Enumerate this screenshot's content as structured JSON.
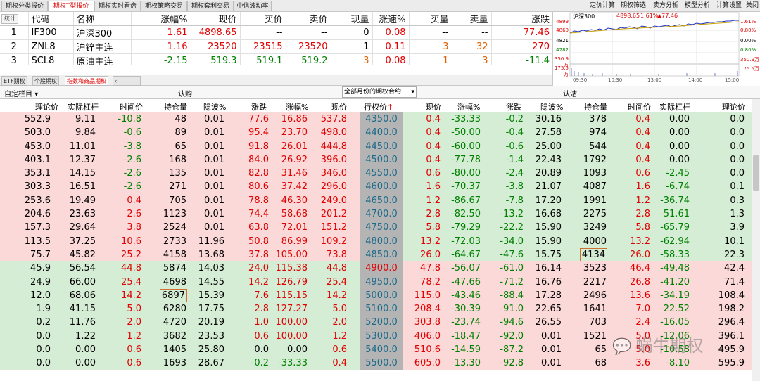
{
  "top_tabs": [
    "期权分类报价",
    "期权T型报价",
    "期权实时看盘",
    "期权策略交易",
    "期权套利交易",
    "中信波动率"
  ],
  "top_links": [
    "定价计算",
    "期权筛选",
    "卖方分析",
    "模型分析",
    "计算设置",
    "关闭"
  ],
  "quote": {
    "headers": [
      "",
      "代码",
      "名称",
      "涨幅%",
      "现价",
      "买价",
      "卖价",
      "现量",
      "涨速%",
      "买量",
      "卖量",
      "涨跌"
    ],
    "rows": [
      [
        "1",
        "IF300",
        "沪深300",
        "1.61",
        "4898.65",
        "--",
        "--",
        "0",
        "0.08",
        "--",
        "--",
        "77.46"
      ],
      [
        "2",
        "ZNL8",
        "沪锌主连",
        "1.16",
        "23520",
        "23515",
        "23520",
        "1",
        "0.11",
        "3",
        "32",
        "270"
      ],
      [
        "3",
        "SCL8",
        "原油主连",
        "-2.15",
        "519.3",
        "519.1",
        "519.2",
        "3",
        "0.08",
        "1",
        "3",
        "-11.4"
      ]
    ]
  },
  "mini": {
    "title": "沪深300",
    "price": "4898.65",
    "pct": "1.61%",
    "chg": "▲77.46",
    "left_labels": [
      "4899",
      "4860",
      "4821",
      "4782",
      "350.9万",
      "175.5万"
    ],
    "right_labels": [
      "1.61%",
      "0.80%",
      "0.00%",
      "0.80%",
      "350.9万",
      "175.5万"
    ],
    "times": [
      "09:30",
      "10:30",
      "13:00",
      "14:00",
      "15:00"
    ],
    "icon": "统计"
  },
  "tabs2": [
    "ETF期权",
    "个股期权",
    "指数和商品期权"
  ],
  "ctrl": {
    "custom": "自定栏目",
    "call": "认购",
    "select": "全部月份的期权合约",
    "put": "认沽"
  },
  "headers": [
    "理论价",
    "实际杠杆",
    "时间价",
    "持仓量",
    "隐波%",
    "涨跌",
    "涨幅%",
    "现价",
    "行权价",
    "现价",
    "涨幅%",
    "涨跌",
    "隐波%",
    "持仓量",
    "时间价",
    "实际杠杆",
    "理论价"
  ],
  "rows": [
    [
      "552.9",
      "9.11",
      "-10.8",
      "48",
      "0.01",
      "77.6",
      "16.86",
      "537.8",
      "4350.0",
      "0.4",
      "-33.33",
      "-0.2",
      "30.16",
      "378",
      "0.4",
      "0.00",
      "0.0"
    ],
    [
      "503.0",
      "9.84",
      "-0.6",
      "89",
      "0.01",
      "95.4",
      "23.70",
      "498.0",
      "4400.0",
      "0.4",
      "-50.00",
      "-0.4",
      "27.58",
      "974",
      "0.4",
      "0.00",
      "0.0"
    ],
    [
      "453.0",
      "11.01",
      "-3.8",
      "65",
      "0.01",
      "91.8",
      "26.01",
      "444.8",
      "4450.0",
      "0.4",
      "-60.00",
      "-0.6",
      "25.00",
      "544",
      "0.4",
      "0.00",
      "0.0"
    ],
    [
      "403.1",
      "12.37",
      "-2.6",
      "168",
      "0.01",
      "84.0",
      "26.92",
      "396.0",
      "4500.0",
      "0.4",
      "-77.78",
      "-1.4",
      "22.43",
      "1792",
      "0.4",
      "0.00",
      "0.0"
    ],
    [
      "353.1",
      "14.15",
      "-2.6",
      "135",
      "0.01",
      "82.8",
      "31.46",
      "346.0",
      "4550.0",
      "0.6",
      "-80.00",
      "-2.4",
      "20.89",
      "1093",
      "0.6",
      "-2.45",
      "0.0"
    ],
    [
      "303.3",
      "16.51",
      "-2.6",
      "271",
      "0.01",
      "80.6",
      "37.42",
      "296.0",
      "4600.0",
      "1.6",
      "-70.37",
      "-3.8",
      "21.07",
      "4087",
      "1.6",
      "-6.74",
      "0.1"
    ],
    [
      "253.6",
      "19.49",
      "0.4",
      "705",
      "0.01",
      "78.8",
      "46.30",
      "249.0",
      "4650.0",
      "1.2",
      "-86.67",
      "-7.8",
      "17.20",
      "1991",
      "1.2",
      "-36.74",
      "0.3"
    ],
    [
      "204.6",
      "23.63",
      "2.6",
      "1123",
      "0.01",
      "74.4",
      "58.68",
      "201.2",
      "4700.0",
      "2.8",
      "-82.50",
      "-13.2",
      "16.68",
      "2275",
      "2.8",
      "-51.61",
      "1.3"
    ],
    [
      "157.3",
      "29.64",
      "3.8",
      "2524",
      "0.01",
      "63.8",
      "72.01",
      "151.2",
      "4750.0",
      "5.8",
      "-79.29",
      "-22.2",
      "15.90",
      "3249",
      "5.8",
      "-65.79",
      "3.9"
    ],
    [
      "113.5",
      "37.25",
      "10.6",
      "2733",
      "11.96",
      "50.8",
      "86.99",
      "109.2",
      "4800.0",
      "13.2",
      "-72.03",
      "-34.0",
      "15.90",
      "4000",
      "13.2",
      "-62.94",
      "10.1"
    ],
    [
      "75.7",
      "45.82",
      "25.2",
      "4158",
      "13.68",
      "37.8",
      "105.00",
      "73.8",
      "4850.0",
      "26.0",
      "-64.67",
      "-47.6",
      "15.75",
      "4134",
      "26.0",
      "-58.33",
      "22.3"
    ],
    [
      "45.9",
      "56.54",
      "44.8",
      "5874",
      "14.03",
      "24.0",
      "115.38",
      "44.8",
      "4900.0",
      "47.8",
      "-56.07",
      "-61.0",
      "16.14",
      "3523",
      "46.4",
      "-49.48",
      "42.4"
    ],
    [
      "24.9",
      "66.00",
      "25.4",
      "4698",
      "14.55",
      "14.2",
      "126.79",
      "25.4",
      "4950.0",
      "78.2",
      "-47.66",
      "-71.2",
      "16.76",
      "2217",
      "26.8",
      "-41.20",
      "71.4"
    ],
    [
      "12.0",
      "68.06",
      "14.2",
      "6897",
      "15.39",
      "7.6",
      "115.15",
      "14.2",
      "5000.0",
      "115.0",
      "-43.46",
      "-88.4",
      "17.28",
      "2496",
      "13.6",
      "-34.19",
      "108.4"
    ],
    [
      "1.9",
      "41.15",
      "5.0",
      "6280",
      "17.75",
      "2.8",
      "127.27",
      "5.0",
      "5100.0",
      "208.4",
      "-30.39",
      "-91.0",
      "22.65",
      "1641",
      "7.0",
      "-22.52",
      "198.2"
    ],
    [
      "0.2",
      "11.76",
      "2.0",
      "4720",
      "20.19",
      "1.0",
      "100.00",
      "2.0",
      "5200.0",
      "303.8",
      "-23.74",
      "-94.6",
      "26.55",
      "703",
      "2.4",
      "-16.05",
      "296.4"
    ],
    [
      "0.0",
      "1.22",
      "1.2",
      "3682",
      "23.53",
      "0.6",
      "100.00",
      "1.2",
      "5300.0",
      "406.0",
      "-18.47",
      "-92.0",
      "0.01",
      "1521",
      "5.0",
      "-12.06",
      "396.1"
    ],
    [
      "0.0",
      "0.00",
      "0.6",
      "1405",
      "25.80",
      "0.0",
      "0.00",
      "0.6",
      "5400.0",
      "510.6",
      "-14.59",
      "-87.2",
      "0.01",
      "65",
      "5.0",
      "-10.58",
      "495.9"
    ],
    [
      "0.0",
      "0.00",
      "0.6",
      "1693",
      "28.67",
      "-0.2",
      "-33.33",
      "0.4",
      "5500.0",
      "605.0",
      "-13.30",
      "-92.8",
      "0.01",
      "68",
      "3.6",
      "-8.10",
      "595.9"
    ]
  ],
  "watermark": "蜗牛期权",
  "colors": {
    "call_itm_bg": "#fcd9d9",
    "put_otm_bg": "#d5ecd5",
    "strike_bg": "#b4b4b4",
    "up": "#e00000",
    "down": "#008000"
  }
}
